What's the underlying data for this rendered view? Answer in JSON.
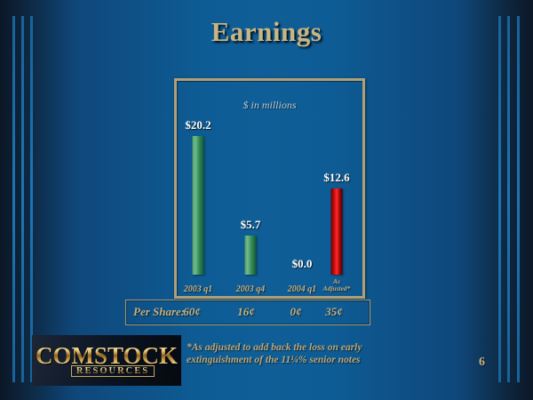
{
  "slide": {
    "title": "Earnings",
    "page_number": "6",
    "footnote": "*As adjusted to add back the loss on early extinguishment of the 11¼% senior notes",
    "logo": {
      "line1": "COMSTOCK",
      "line2": "RESOURCES"
    }
  },
  "chart_data": {
    "type": "bar",
    "title": "$ in millions",
    "categories": [
      "2003 q1",
      "2003 q4",
      "2004 q1",
      "As Adjusted*"
    ],
    "display_categories": [
      "2003 q1",
      "2003 q4",
      "2004 q1",
      "As\nAdjusted*"
    ],
    "values": [
      20.2,
      5.7,
      0.0,
      12.6
    ],
    "value_labels": [
      "$20.2",
      "$5.7",
      "$0.0",
      "$12.6"
    ],
    "bar_colors": [
      "green",
      "green",
      "green",
      "red"
    ],
    "ylim": [
      0,
      22
    ],
    "grid": false,
    "legend": false,
    "per_share": {
      "label": "Per Share:",
      "values": [
        "60¢",
        "16¢",
        "0¢",
        "35¢"
      ]
    }
  },
  "colors": {
    "background_center": "#0e5c95",
    "background_edge": "#0b1726",
    "edge_stripe_blue": "#1a6aa3",
    "frame_border": "#b0a078",
    "tan_text": "#c3b183",
    "value_label": "#ffffff",
    "bar_green": "#2f8a56",
    "bar_red": "#e81212",
    "logo_gold": "#d4af5f"
  }
}
